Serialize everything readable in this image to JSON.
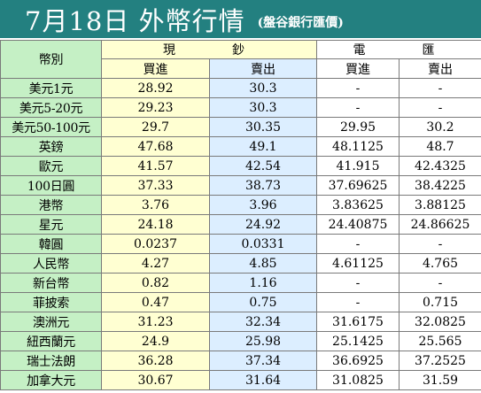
{
  "header": {
    "title": "7月18日 外幣行情",
    "subtitle": "(盤谷銀行匯價)"
  },
  "columns": {
    "currency": "幣別",
    "cash": "現　　鈔",
    "wire": "電　　匯",
    "buy": "買進",
    "sell": "賣出"
  },
  "rows": [
    {
      "currency": "美元1元",
      "cash_buy": "28.92",
      "cash_sell": "30.3",
      "wire_buy": "-",
      "wire_sell": "-"
    },
    {
      "currency": "美元5-20元",
      "cash_buy": "29.23",
      "cash_sell": "30.3",
      "wire_buy": "-",
      "wire_sell": "-"
    },
    {
      "currency": "美元50-100元",
      "cash_buy": "29.7",
      "cash_sell": "30.35",
      "wire_buy": "29.95",
      "wire_sell": "30.2"
    },
    {
      "currency": "英鎊",
      "cash_buy": "47.68",
      "cash_sell": "49.1",
      "wire_buy": "48.1125",
      "wire_sell": "48.7"
    },
    {
      "currency": "歐元",
      "cash_buy": "41.57",
      "cash_sell": "42.54",
      "wire_buy": "41.915",
      "wire_sell": "42.4325"
    },
    {
      "currency": "100日圓",
      "cash_buy": "37.33",
      "cash_sell": "38.73",
      "wire_buy": "37.69625",
      "wire_sell": "38.4225"
    },
    {
      "currency": "港幣",
      "cash_buy": "3.76",
      "cash_sell": "3.96",
      "wire_buy": "3.83625",
      "wire_sell": "3.88125"
    },
    {
      "currency": "星元",
      "cash_buy": "24.18",
      "cash_sell": "24.92",
      "wire_buy": "24.40875",
      "wire_sell": "24.86625"
    },
    {
      "currency": "韓圓",
      "cash_buy": "0.0237",
      "cash_sell": "0.0331",
      "wire_buy": "-",
      "wire_sell": "-"
    },
    {
      "currency": "人民幣",
      "cash_buy": "4.27",
      "cash_sell": "4.85",
      "wire_buy": "4.61125",
      "wire_sell": "4.765"
    },
    {
      "currency": "新台幣",
      "cash_buy": "0.82",
      "cash_sell": "1.16",
      "wire_buy": "-",
      "wire_sell": "-"
    },
    {
      "currency": "菲披索",
      "cash_buy": "0.47",
      "cash_sell": "0.75",
      "wire_buy": "-",
      "wire_sell": "0.715"
    },
    {
      "currency": "澳洲元",
      "cash_buy": "31.23",
      "cash_sell": "32.34",
      "wire_buy": "31.6175",
      "wire_sell": "32.0825"
    },
    {
      "currency": "紐西蘭元",
      "cash_buy": "24.9",
      "cash_sell": "25.98",
      "wire_buy": "25.1425",
      "wire_sell": "25.565"
    },
    {
      "currency": "瑞士法朗",
      "cash_buy": "36.28",
      "cash_sell": "37.34",
      "wire_buy": "36.6925",
      "wire_sell": "37.2525"
    },
    {
      "currency": "加拿大元",
      "cash_buy": "30.67",
      "cash_sell": "31.64",
      "wire_buy": "31.0825",
      "wire_sell": "31.59"
    }
  ],
  "colors": {
    "header_bg": "#238080",
    "currency_bg": "#c5f0c5",
    "cash_buy_bg": "#ffffd2",
    "cash_sell_bg": "#dceeff",
    "wire_bg": "#ffffff"
  }
}
